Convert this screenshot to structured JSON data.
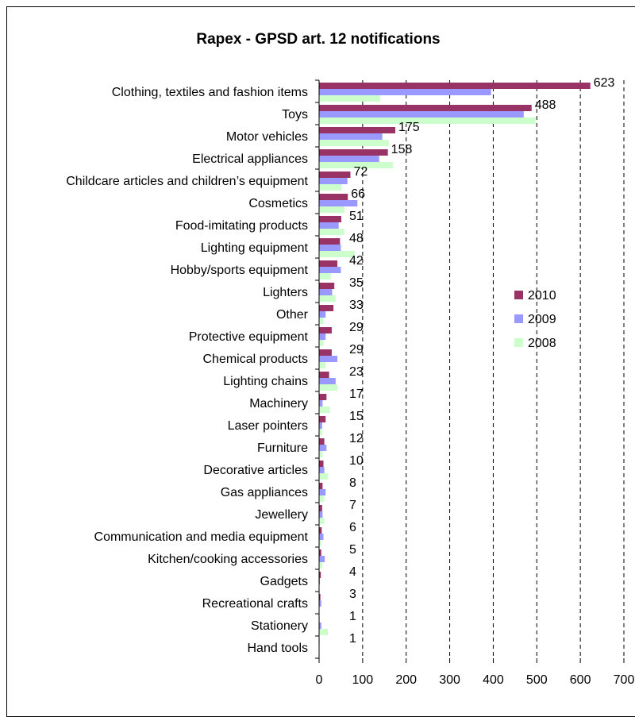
{
  "chart_data": {
    "type": "bar",
    "orientation": "horizontal",
    "title": "Rapex - GPSD art. 12 notifications",
    "xlabel": "",
    "ylabel": "",
    "xlim": [
      0,
      700
    ],
    "x_ticks": [
      "0",
      "100",
      "200",
      "300",
      "400",
      "500",
      "600",
      "700"
    ],
    "grid": "vertical dashed",
    "legend_position": "right",
    "categories": [
      "Clothing, textiles and fashion items",
      "Toys",
      "Motor vehicles",
      "Electrical appliances",
      "Childcare articles and children’s equipment",
      "Cosmetics",
      "Food-imitating products",
      "Lighting equipment",
      "Hobby/sports equipment",
      "Lighters",
      "Other",
      "Protective equipment",
      "Chemical products",
      "Lighting chains",
      "Machinery",
      "Laser pointers",
      "Furniture",
      "Decorative articles",
      "Gas appliances",
      "Jewellery",
      "Communication and media equipment",
      "Kitchen/cooking accessories",
      "Gadgets",
      "Recreational crafts",
      "Stationery",
      "Hand tools"
    ],
    "series": [
      {
        "name": "2010",
        "color": "#993366",
        "values": [
          623,
          488,
          175,
          158,
          72,
          66,
          51,
          48,
          42,
          35,
          33,
          29,
          29,
          23,
          17,
          15,
          12,
          10,
          8,
          7,
          6,
          5,
          4,
          3,
          1,
          1
        ]
      },
      {
        "name": "2009",
        "color": "#9999ff",
        "values": [
          395,
          470,
          145,
          138,
          65,
          88,
          45,
          50,
          50,
          30,
          15,
          15,
          42,
          38,
          8,
          7,
          17,
          12,
          15,
          8,
          10,
          13,
          2,
          5,
          5,
          0
        ]
      },
      {
        "name": "2008",
        "color": "#ccffcc",
        "values": [
          140,
          497,
          160,
          170,
          52,
          58,
          58,
          82,
          27,
          38,
          10,
          10,
          15,
          42,
          25,
          7,
          8,
          20,
          12,
          12,
          5,
          7,
          0,
          0,
          20,
          0
        ]
      }
    ],
    "data_labels_series": "2010"
  }
}
